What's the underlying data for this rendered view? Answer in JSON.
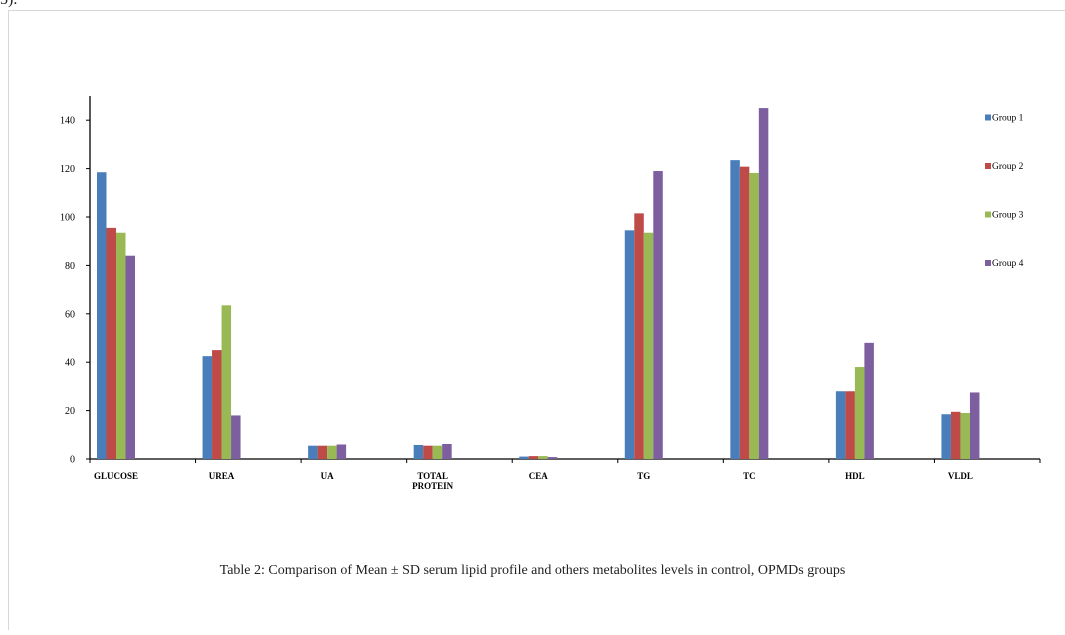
{
  "page": {
    "top_fragment": "5).",
    "caption": "Table 2: Comparison of Mean ± SD serum lipid profile and others metabolites levels in control, OPMDs groups"
  },
  "chart_data": {
    "type": "bar",
    "categories": [
      "GLUCOSE",
      "UREA",
      "UA",
      "TOTAL PROTEIN",
      "CEA",
      "TG",
      "TC",
      "HDL",
      "VLDL"
    ],
    "category_lines": [
      [
        "GLUCOSE"
      ],
      [
        "UREA"
      ],
      [
        "UA"
      ],
      [
        "TOTAL",
        "PROTEIN"
      ],
      [
        "CEA"
      ],
      [
        "TG"
      ],
      [
        "TC"
      ],
      [
        "HDL"
      ],
      [
        "VLDL"
      ]
    ],
    "series": [
      {
        "name": "Group 1",
        "color": "#4a7ebb",
        "values": [
          118.5,
          42.5,
          5.5,
          5.8,
          1.0,
          94.5,
          123.5,
          28.0,
          18.5
        ]
      },
      {
        "name": "Group 2",
        "color": "#be4b48",
        "values": [
          95.5,
          45.0,
          5.5,
          5.5,
          1.2,
          101.5,
          120.8,
          28.0,
          19.5
        ]
      },
      {
        "name": "Group 3",
        "color": "#98b954",
        "values": [
          93.5,
          63.5,
          5.5,
          5.5,
          1.2,
          93.5,
          118.2,
          38.0,
          19.0
        ]
      },
      {
        "name": "Group 4",
        "color": "#7d5fa0",
        "values": [
          84.0,
          18.0,
          6.0,
          6.2,
          0.8,
          119.0,
          145.0,
          48.0,
          27.5
        ]
      }
    ],
    "y_ticks": [
      "0",
      "20",
      "40",
      "60",
      "80",
      "100",
      "120",
      "140"
    ],
    "ylim": [
      0,
      150
    ],
    "title": "",
    "xlabel": "",
    "ylabel": "",
    "grid": false,
    "legend_position": "right"
  }
}
